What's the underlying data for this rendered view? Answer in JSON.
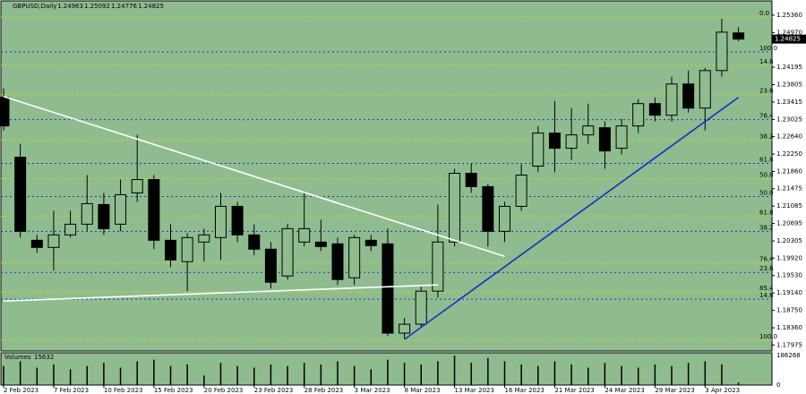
{
  "chart_data": {
    "type": "candlestick",
    "title": "GBPUSD,Daily",
    "categories": [
      "2 Feb 2023",
      null,
      null,
      "7 Feb 2023",
      null,
      null,
      "10 Feb 2023",
      null,
      null,
      "15 Feb 2023",
      null,
      null,
      "20 Feb 2023",
      null,
      null,
      "23 Feb 2023",
      null,
      null,
      "28 Feb 2023",
      null,
      null,
      "3 Mar 2023",
      null,
      null,
      "8 Mar 2023",
      null,
      null,
      "13 Mar 2023",
      null,
      null,
      "16 Mar 2023",
      null,
      null,
      "21 Mar 2023",
      null,
      null,
      "24 Mar 2023",
      null,
      null,
      "29 Mar 2023",
      null,
      null,
      "3 Apr 2023",
      null,
      null
    ],
    "open": [
      1.2352,
      1.2218,
      1.2032,
      1.2016,
      1.2044,
      1.2068,
      1.2112,
      1.2068,
      1.2138,
      1.2168,
      1.2032,
      1.1984,
      1.2028,
      1.2038,
      1.2108,
      1.2044,
      1.2012,
      1.1952,
      1.2028,
      1.2028,
      1.2024,
      1.1948,
      1.2032,
      1.2024,
      1.1824,
      1.1844,
      1.1918,
      1.2028,
      1.2182,
      1.2152,
      1.2052,
      1.2108,
      1.2198,
      1.2272,
      1.2238,
      1.2268,
      1.2284,
      1.2238,
      1.2288,
      1.2338,
      1.2312,
      1.2382,
      1.2328,
      1.2412,
      1.24963
    ],
    "high": [
      1.2372,
      1.2248,
      1.2044,
      1.2098,
      1.2098,
      1.2178,
      1.2138,
      1.2168,
      1.2268,
      1.2178,
      1.2068,
      1.2048,
      1.2058,
      1.2138,
      1.2118,
      1.2068,
      1.2028,
      1.2068,
      1.2138,
      1.2078,
      1.2038,
      1.2044,
      1.2044,
      1.2058,
      1.1858,
      1.1928,
      1.2112,
      1.2192,
      1.2204,
      1.2158,
      1.2118,
      1.2202,
      1.2288,
      1.2344,
      1.2328,
      1.2338,
      1.2298,
      1.2304,
      1.2348,
      1.2352,
      1.2398,
      1.2412,
      1.2418,
      1.2528,
      1.25092
    ],
    "low": [
      1.2278,
      1.2038,
      1.2004,
      1.1964,
      1.2038,
      1.2052,
      1.2044,
      1.2052,
      1.2118,
      1.2012,
      1.1972,
      1.1918,
      1.1984,
      1.1988,
      1.2028,
      1.1998,
      1.1924,
      1.1944,
      1.2018,
      1.2008,
      1.1932,
      1.1932,
      1.2008,
      1.1818,
      1.1812,
      1.1838,
      1.1904,
      1.2018,
      1.2138,
      1.2018,
      1.2028,
      1.2098,
      1.2184,
      1.2184,
      1.2212,
      1.2248,
      1.2192,
      1.2224,
      1.2272,
      1.2298,
      1.2298,
      1.2318,
      1.2278,
      1.2398,
      1.24776
    ],
    "close": [
      1.2288,
      1.2052,
      1.2016,
      1.2044,
      1.2068,
      1.2114,
      1.2058,
      1.2134,
      1.2168,
      1.2032,
      1.1988,
      1.2038,
      1.2044,
      1.2108,
      1.2044,
      1.2012,
      1.1938,
      1.2058,
      1.2058,
      1.2018,
      1.1944,
      1.2038,
      1.202,
      1.1824,
      1.1844,
      1.1918,
      1.2028,
      1.2182,
      1.2152,
      1.2052,
      1.2108,
      1.2178,
      1.2272,
      1.2238,
      1.2268,
      1.2288,
      1.2232,
      1.2288,
      1.2338,
      1.2312,
      1.2382,
      1.2328,
      1.2412,
      1.2498,
      1.24825
    ],
    "up_color": "none",
    "down_color": "#000000",
    "ylim": [
      1.1784,
      1.2568
    ],
    "yticks": [
      {
        "value": 1.2536,
        "label": "1.25360"
      },
      {
        "value": 1.2497,
        "label": "1.24970"
      },
      {
        "value": 1.24195,
        "label": "1.24195"
      },
      {
        "value": 1.23805,
        "label": "1.23805"
      },
      {
        "value": 1.23415,
        "label": "1.23415"
      },
      {
        "value": 1.23025,
        "label": "1.23025"
      },
      {
        "value": 1.2264,
        "label": "1.22640"
      },
      {
        "value": 1.2225,
        "label": "1.22250"
      },
      {
        "value": 1.2186,
        "label": "1.21860"
      },
      {
        "value": 1.21475,
        "label": "1.21475"
      },
      {
        "value": 1.21085,
        "label": "1.21085"
      },
      {
        "value": 1.20695,
        "label": "1.20695"
      },
      {
        "value": 1.20305,
        "label": "1.20305"
      },
      {
        "value": 1.1992,
        "label": "1.19920"
      },
      {
        "value": 1.1953,
        "label": "1.19530"
      },
      {
        "value": 1.1914,
        "label": "1.19140"
      },
      {
        "value": 1.1875,
        "label": "1.18750"
      },
      {
        "value": 1.1836,
        "label": "1.18360"
      },
      {
        "value": 1.17975,
        "label": "1.17975"
      }
    ],
    "fib_levels": [
      {
        "label": "0.0",
        "price": 1.2532,
        "color": "#d8d800"
      },
      {
        "label": "100.0",
        "price": 1.2454,
        "color": "#2030c0"
      },
      {
        "label": "14.6",
        "price": 1.2424,
        "color": "#d8d800"
      },
      {
        "label": "23.6",
        "price": 1.2358,
        "color": "#d8d800"
      },
      {
        "label": "76.4",
        "price": 1.2302,
        "color": "#2030c0"
      },
      {
        "label": "38.2",
        "price": 1.2256,
        "color": "#d8d800"
      },
      {
        "label": "61.8",
        "price": 1.2204,
        "color": "#2030c0"
      },
      {
        "label": "50.0",
        "price": 1.217,
        "color": "#d8d800"
      },
      {
        "label": "50.0",
        "price": 1.213,
        "color": "#2030c0"
      },
      {
        "label": "61.8",
        "price": 1.2086,
        "color": "#d8d800"
      },
      {
        "label": "38.2",
        "price": 1.2052,
        "color": "#2030c0"
      },
      {
        "label": "76.4",
        "price": 1.1982,
        "color": "#d8d800"
      },
      {
        "label": "23.6",
        "price": 1.196,
        "color": "#2030c0"
      },
      {
        "label": "85.4",
        "price": 1.1916,
        "color": "#d8d800"
      },
      {
        "label": "14.6",
        "price": 1.19,
        "color": "#2030c0"
      },
      {
        "label": "100.0",
        "price": 1.1808,
        "color": "#d8d800"
      }
    ],
    "trend_lines": [
      {
        "x": [
          0,
          30
        ],
        "y": [
          1.2354,
          1.1996
        ],
        "color": "#ffffff"
      },
      {
        "x": [
          0,
          26
        ],
        "y": [
          1.1896,
          1.1932
        ],
        "color": "#ffffff"
      },
      {
        "x": [
          24,
          44
        ],
        "y": [
          1.181,
          1.2352
        ],
        "color": "#1030c8"
      }
    ],
    "volume_label": "Volumes",
    "volume": [
      120000,
      150000,
      110000,
      130000,
      100000,
      120000,
      140000,
      110000,
      150000,
      160000,
      120000,
      130000,
      60000,
      140000,
      120000,
      110000,
      130000,
      120000,
      140000,
      130000,
      150000,
      120000,
      100000,
      160000,
      140000,
      130000,
      150000,
      186268,
      140000,
      170000,
      150000,
      130000,
      120000,
      150000,
      130000,
      110000,
      140000,
      120000,
      110000,
      130000,
      120000,
      140000,
      150000,
      130000,
      15632
    ],
    "volume_ylim": [
      0,
      186268
    ],
    "volume_yticks": [
      0,
      186268
    ]
  }
}
